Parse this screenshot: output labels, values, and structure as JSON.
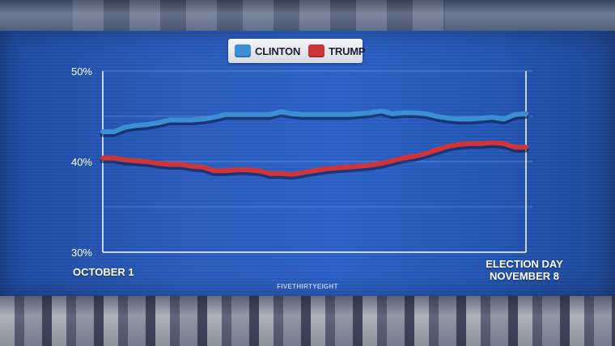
{
  "source_label": "FIVETHIRTYEIGHT",
  "colors": {
    "clinton": "#3d8fd4",
    "trump": "#d0343b",
    "panel": "#2a5cc0",
    "axis": "#ffffff"
  },
  "chart_data": {
    "type": "line",
    "title": "",
    "xlabel": "",
    "ylabel": "",
    "x_start_label": "OCTOBER 1",
    "x_end_label": [
      "ELECTION DAY",
      "NOVEMBER 8"
    ],
    "y_ticks": [
      "50%",
      "40%",
      "30%"
    ],
    "ylim": [
      30,
      50
    ],
    "grid": true,
    "legend_position": "top-center",
    "x": [
      "Oct 1",
      "Oct 2",
      "Oct 3",
      "Oct 4",
      "Oct 5",
      "Oct 6",
      "Oct 7",
      "Oct 8",
      "Oct 9",
      "Oct 10",
      "Oct 11",
      "Oct 12",
      "Oct 13",
      "Oct 14",
      "Oct 15",
      "Oct 16",
      "Oct 17",
      "Oct 18",
      "Oct 19",
      "Oct 20",
      "Oct 21",
      "Oct 22",
      "Oct 23",
      "Oct 24",
      "Oct 25",
      "Oct 26",
      "Oct 27",
      "Oct 28",
      "Oct 29",
      "Oct 30",
      "Oct 31",
      "Nov 1",
      "Nov 2",
      "Nov 3",
      "Nov 4",
      "Nov 5",
      "Nov 6",
      "Nov 7",
      "Nov 8"
    ],
    "series": [
      {
        "name": "CLINTON",
        "color": "#3d8fd4",
        "values": [
          43.3,
          43.3,
          43.8,
          44.0,
          44.1,
          44.3,
          44.6,
          44.6,
          44.6,
          44.7,
          44.9,
          45.2,
          45.2,
          45.2,
          45.2,
          45.2,
          45.5,
          45.3,
          45.2,
          45.2,
          45.2,
          45.2,
          45.2,
          45.3,
          45.4,
          45.6,
          45.3,
          45.4,
          45.4,
          45.3,
          45.0,
          44.8,
          44.7,
          44.7,
          44.8,
          44.9,
          44.7,
          45.2,
          45.3
        ]
      },
      {
        "name": "TRUMP",
        "color": "#d0343b",
        "values": [
          40.4,
          40.4,
          40.2,
          40.1,
          40.0,
          39.8,
          39.7,
          39.7,
          39.5,
          39.4,
          39.0,
          39.0,
          39.1,
          39.1,
          39.0,
          38.7,
          38.7,
          38.6,
          38.8,
          39.0,
          39.2,
          39.3,
          39.4,
          39.5,
          39.6,
          39.8,
          40.1,
          40.4,
          40.6,
          40.9,
          41.3,
          41.7,
          41.9,
          42.0,
          42.0,
          42.1,
          42.0,
          41.6,
          41.6
        ]
      }
    ]
  }
}
